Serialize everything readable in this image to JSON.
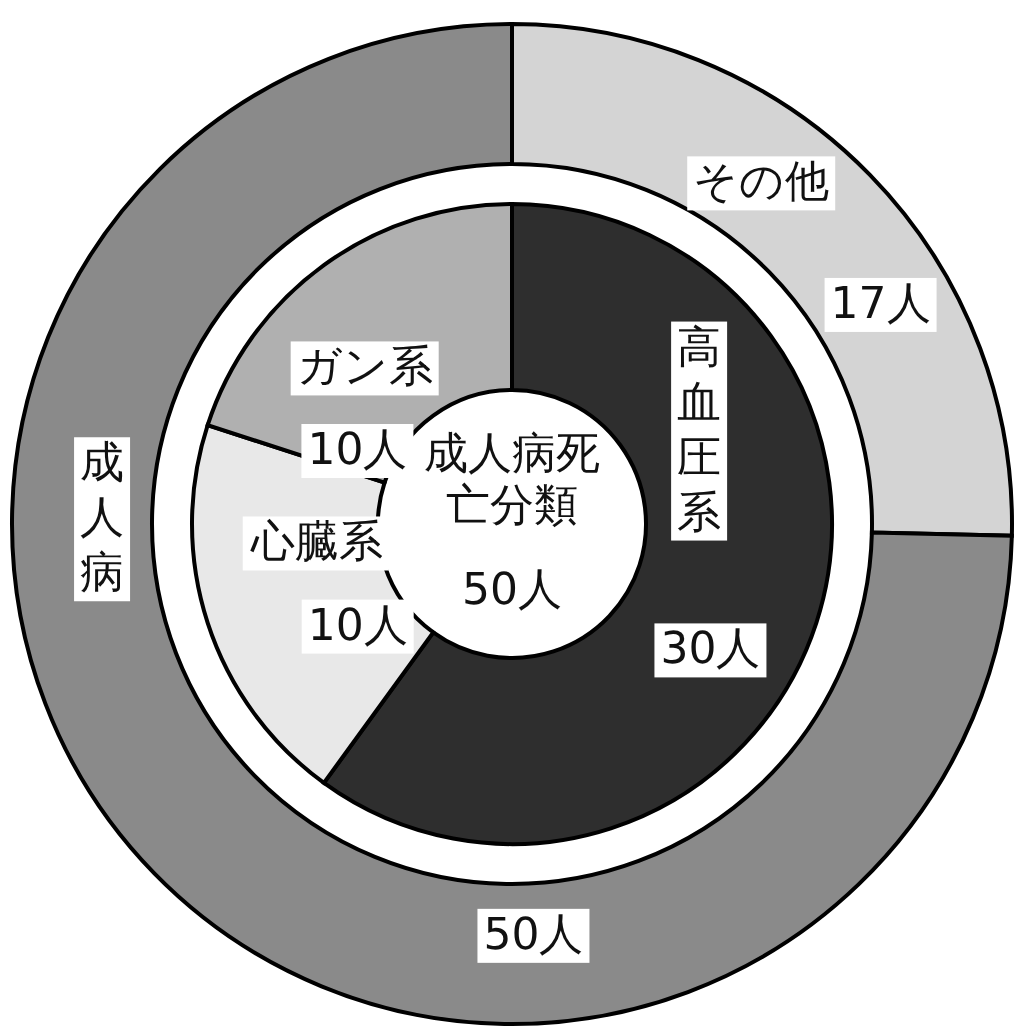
{
  "chart_data": [
    {
      "type": "donut",
      "categories": [
        "その他",
        "成人病"
      ],
      "values": [
        17,
        50
      ],
      "value_labels": [
        "17人",
        "50人"
      ],
      "colors": [
        "#d4d4d4",
        "#8a8a8a"
      ]
    },
    {
      "type": "donut",
      "title": "成人病死亡分類",
      "subtitle": "50人",
      "categories": [
        "高血圧系",
        "心臓系",
        "ガン系"
      ],
      "values": [
        30,
        10,
        10
      ],
      "value_labels": [
        "30人",
        "10人",
        "10人"
      ],
      "colors": [
        "#2e2e2e",
        "#e8e8e8",
        "#b0b0b0"
      ]
    }
  ]
}
